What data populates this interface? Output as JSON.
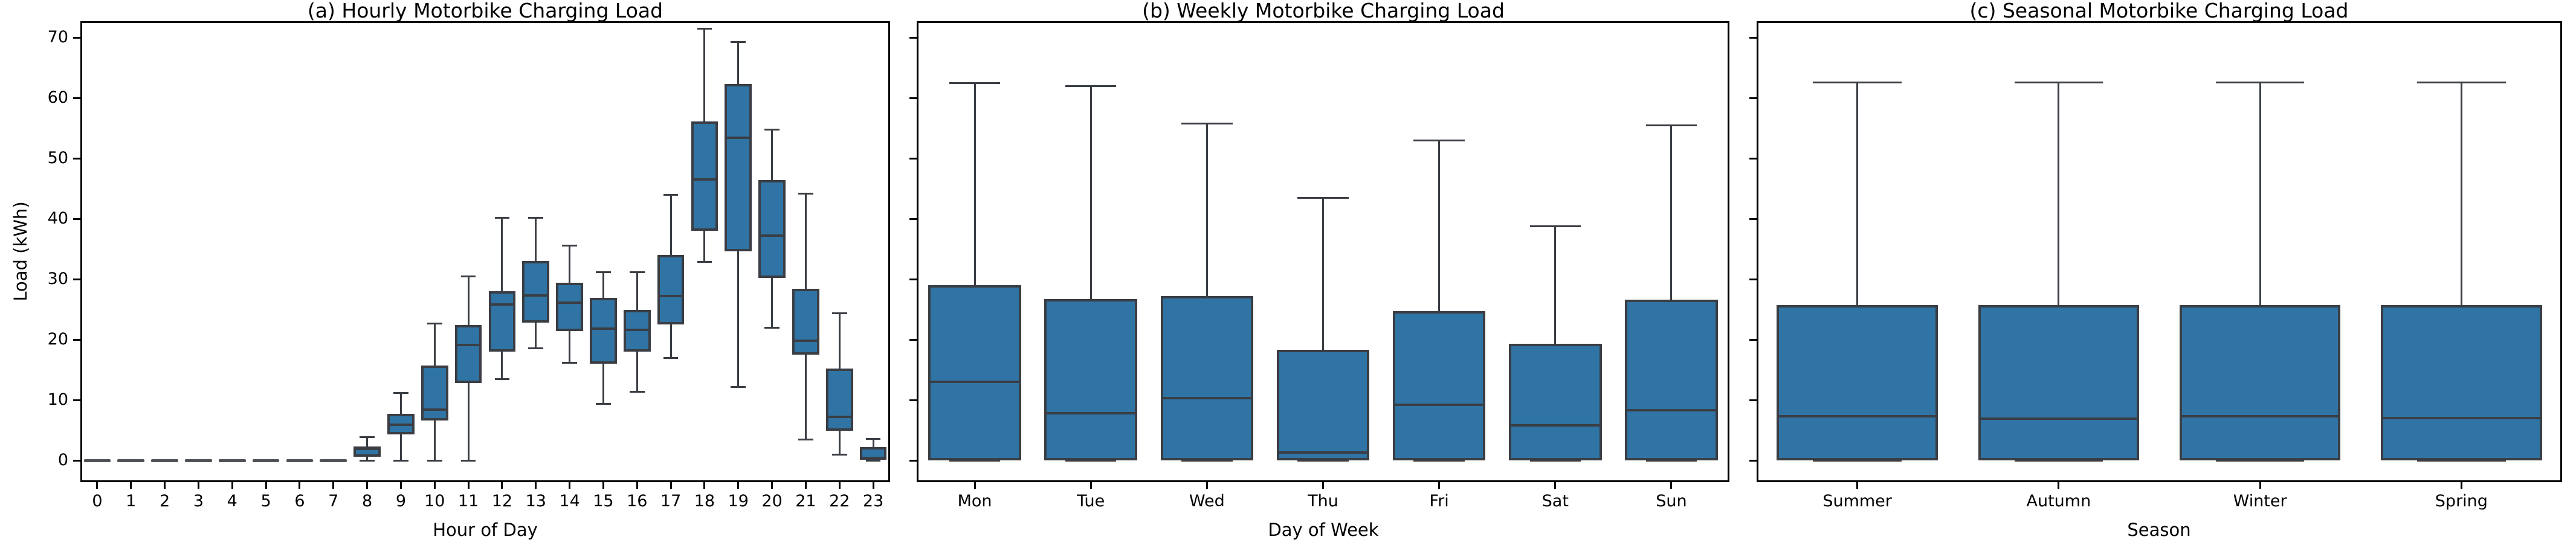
{
  "figure": {
    "background": "#ffffff",
    "axis_color": "#000000",
    "box_fill": "#2f74a4",
    "box_edge": "#3a3e44",
    "whisker_color": "#3a3e44",
    "zero_dash_color": "#4f5357"
  },
  "chart_data": [
    {
      "type": "box",
      "title": "(a) Hourly Motorbike Charging Load",
      "xlabel": "Hour of Day",
      "ylabel": "Load (kWh)",
      "ylim": [
        -3.6,
        72.7
      ],
      "yticks": [
        0,
        10,
        20,
        30,
        40,
        50,
        60,
        70
      ],
      "grid": false,
      "show_ytick_labels": true,
      "categories": [
        "0",
        "1",
        "2",
        "3",
        "4",
        "5",
        "6",
        "7",
        "8",
        "9",
        "10",
        "11",
        "12",
        "13",
        "14",
        "15",
        "16",
        "17",
        "18",
        "19",
        "20",
        "21",
        "22",
        "23"
      ],
      "stats_order": [
        "whisker_low",
        "q1",
        "median",
        "q3",
        "whisker_high"
      ],
      "stats": [
        [
          0,
          0,
          0,
          0,
          0
        ],
        [
          0,
          0,
          0,
          0,
          0
        ],
        [
          0,
          0,
          0,
          0,
          0
        ],
        [
          0,
          0,
          0,
          0,
          0
        ],
        [
          0,
          0,
          0,
          0,
          0
        ],
        [
          0,
          0,
          0,
          0,
          0
        ],
        [
          0,
          0,
          0,
          0,
          0
        ],
        [
          0,
          0,
          0,
          0,
          0
        ],
        [
          0,
          0.6,
          1.9,
          2.3,
          3.9
        ],
        [
          0,
          4.3,
          5.9,
          7.7,
          11.2
        ],
        [
          0,
          6.6,
          8.4,
          15.7,
          22.7
        ],
        [
          0,
          12.8,
          19.1,
          22.4,
          30.5
        ],
        [
          13.5,
          18.0,
          25.8,
          28.0,
          40.2
        ],
        [
          18.6,
          22.8,
          27.3,
          33.0,
          40.2
        ],
        [
          16.2,
          21.4,
          26.1,
          29.4,
          35.6
        ],
        [
          9.4,
          16.0,
          21.8,
          26.9,
          31.2
        ],
        [
          11.4,
          18.0,
          21.6,
          24.9,
          31.2
        ],
        [
          17.0,
          22.5,
          27.2,
          34.0,
          44.0
        ],
        [
          32.9,
          38.0,
          46.5,
          56.1,
          71.5
        ],
        [
          12.2,
          34.6,
          53.4,
          62.3,
          69.3
        ],
        [
          22.0,
          30.2,
          37.2,
          46.4,
          54.8
        ],
        [
          3.5,
          17.5,
          19.8,
          28.4,
          44.2
        ],
        [
          1.0,
          4.9,
          7.2,
          15.2,
          24.4
        ],
        [
          0,
          0.1,
          0.4,
          2.2,
          3.6
        ]
      ]
    },
    {
      "type": "box",
      "title": "(b) Weekly Motorbike Charging Load",
      "xlabel": "Day of Week",
      "ylabel": "",
      "ylim": [
        -3.6,
        72.7
      ],
      "yticks": [
        0,
        10,
        20,
        30,
        40,
        50,
        60,
        70
      ],
      "grid": false,
      "show_ytick_labels": false,
      "categories": [
        "Mon",
        "Tue",
        "Wed",
        "Thu",
        "Fri",
        "Sat",
        "Sun"
      ],
      "stats_order": [
        "whisker_low",
        "q1",
        "median",
        "q3",
        "whisker_high"
      ],
      "stats": [
        [
          0,
          0,
          13.0,
          29.0,
          62.5
        ],
        [
          0,
          0,
          7.8,
          26.7,
          62.0
        ],
        [
          0,
          0,
          10.3,
          27.2,
          55.8
        ],
        [
          0,
          0,
          1.3,
          18.3,
          43.5
        ],
        [
          0,
          0,
          9.2,
          24.7,
          53.0
        ],
        [
          0,
          0,
          5.8,
          19.3,
          38.8
        ],
        [
          0,
          0,
          8.3,
          26.6,
          55.5
        ]
      ]
    },
    {
      "type": "box",
      "title": "(c) Seasonal Motorbike Charging Load",
      "xlabel": "Season",
      "ylabel": "",
      "ylim": [
        -3.6,
        72.7
      ],
      "yticks": [
        0,
        10,
        20,
        30,
        40,
        50,
        60,
        70
      ],
      "grid": false,
      "show_ytick_labels": false,
      "categories": [
        "Summer",
        "Autumn",
        "Winter",
        "Spring"
      ],
      "stats_order": [
        "whisker_low",
        "q1",
        "median",
        "q3",
        "whisker_high"
      ],
      "stats": [
        [
          0,
          0,
          7.3,
          25.7,
          62.6
        ],
        [
          0,
          0,
          6.9,
          25.7,
          62.6
        ],
        [
          0,
          0,
          7.3,
          25.7,
          62.6
        ],
        [
          0,
          0,
          7.0,
          25.7,
          62.6
        ]
      ]
    }
  ]
}
